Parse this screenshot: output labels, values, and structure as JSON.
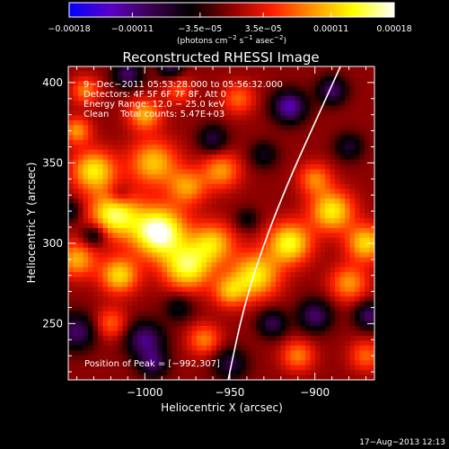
{
  "chart_data": {
    "type": "heatmap",
    "title": "Reconstructed RHESSI Image",
    "xlabel": "Heliocentric X (arcsec)",
    "ylabel": "Heliocentric Y (arcsec)",
    "xlim": [
      -1045,
      -865
    ],
    "ylim": [
      215,
      410
    ],
    "xticks": [
      -1000,
      -950,
      -900
    ],
    "xtick_labels": [
      "−1000",
      "−950",
      "−900"
    ],
    "yticks": [
      250,
      300,
      350,
      400
    ],
    "ytick_labels": [
      "250",
      "300",
      "350",
      "400"
    ],
    "colorbar": {
      "ticks": [
        -0.00018,
        -0.00011,
        -3.5e-05,
        3.5e-05,
        0.00011,
        0.00018
      ],
      "tick_labels": [
        "−0.00018",
        "−0.00011",
        "−3.5e−05",
        "3.5e−05",
        "0.00011",
        "0.00018"
      ],
      "unit_label": "(photons cm",
      "unit_label_sup1": "−2",
      "unit_label_mid": " s",
      "unit_label_sup2": "−1",
      "unit_label_mid2": " asec",
      "unit_label_sup3": "−2",
      "unit_label_end": ")",
      "colors": [
        "#0000ff",
        "#5a00c8",
        "#3c0050",
        "#000000",
        "#8c0000",
        "#ff1e00",
        "#ff9600",
        "#ffff00",
        "#ffffff"
      ]
    },
    "info_lines": [
      "9−Dec−2011 05:53:28.000 to 05:56:32.000",
      "Detectors: 4F 5F 6F 7F 8F, Att 0",
      "Energy Range: 12.0 − 25.0 keV",
      "Clean    Total counts: 5.47E+03"
    ],
    "peak_label": "Position of Peak = [−992,307]",
    "peak": [
      -992,
      307
    ],
    "limb_curve": [
      [
        -951,
        215
      ],
      [
        -942,
        260
      ],
      [
        -930,
        300
      ],
      [
        -915,
        340
      ],
      [
        -900,
        375
      ],
      [
        -885,
        410
      ]
    ],
    "image_min": -0.00018,
    "image_max": 0.00018,
    "features": [
      {
        "x": -992,
        "y": 307,
        "amp": 0.00019,
        "sigma": 11
      },
      {
        "x": -1018,
        "y": 318,
        "amp": 0.00015,
        "sigma": 10
      },
      {
        "x": -1030,
        "y": 345,
        "amp": 0.00013,
        "sigma": 9
      },
      {
        "x": -995,
        "y": 350,
        "amp": 0.00011,
        "sigma": 10
      },
      {
        "x": -1040,
        "y": 290,
        "amp": 0.0001,
        "sigma": 8
      },
      {
        "x": -1015,
        "y": 280,
        "amp": 0.00012,
        "sigma": 8
      },
      {
        "x": -975,
        "y": 285,
        "amp": 0.00014,
        "sigma": 10
      },
      {
        "x": -960,
        "y": 300,
        "amp": 0.00011,
        "sigma": 9
      },
      {
        "x": -975,
        "y": 335,
        "amp": 9e-05,
        "sigma": 8
      },
      {
        "x": -955,
        "y": 345,
        "amp": 9e-05,
        "sigma": 8
      },
      {
        "x": -935,
        "y": 280,
        "amp": 0.00013,
        "sigma": 10
      },
      {
        "x": -915,
        "y": 300,
        "amp": 0.00014,
        "sigma": 9
      },
      {
        "x": -890,
        "y": 320,
        "amp": 0.00013,
        "sigma": 9
      },
      {
        "x": -870,
        "y": 300,
        "amp": 0.00012,
        "sigma": 8
      },
      {
        "x": -880,
        "y": 275,
        "amp": 9e-05,
        "sigma": 8
      },
      {
        "x": -900,
        "y": 340,
        "amp": 8e-05,
        "sigma": 7
      },
      {
        "x": -1000,
        "y": 380,
        "amp": 0.0001,
        "sigma": 7
      },
      {
        "x": -1035,
        "y": 395,
        "amp": 8e-05,
        "sigma": 6
      },
      {
        "x": -1040,
        "y": 370,
        "amp": 9e-05,
        "sigma": 6
      },
      {
        "x": -950,
        "y": 270,
        "amp": 9e-05,
        "sigma": 7
      },
      {
        "x": -965,
        "y": 240,
        "amp": 8e-05,
        "sigma": 7
      },
      {
        "x": -1020,
        "y": 250,
        "amp": 7e-05,
        "sigma": 7
      },
      {
        "x": -910,
        "y": 230,
        "amp": 8e-05,
        "sigma": 7
      },
      {
        "x": -870,
        "y": 230,
        "amp": 7e-05,
        "sigma": 7
      },
      {
        "x": -980,
        "y": 395,
        "amp": 6e-05,
        "sigma": 6
      },
      {
        "x": -945,
        "y": 390,
        "amp": 7e-05,
        "sigma": 7
      },
      {
        "x": -915,
        "y": 385,
        "amp": -0.00013,
        "sigma": 7
      },
      {
        "x": -890,
        "y": 395,
        "amp": -0.0001,
        "sigma": 6
      },
      {
        "x": -1010,
        "y": 405,
        "amp": -0.0001,
        "sigma": 6
      },
      {
        "x": -985,
        "y": 410,
        "amp": -9e-05,
        "sigma": 5
      },
      {
        "x": -1045,
        "y": 320,
        "amp": -7e-05,
        "sigma": 5
      },
      {
        "x": -1030,
        "y": 305,
        "amp": -8e-05,
        "sigma": 5
      },
      {
        "x": -1040,
        "y": 245,
        "amp": -0.0001,
        "sigma": 8
      },
      {
        "x": -1000,
        "y": 240,
        "amp": -0.00011,
        "sigma": 8
      },
      {
        "x": -995,
        "y": 225,
        "amp": -9e-05,
        "sigma": 6
      },
      {
        "x": -950,
        "y": 225,
        "amp": -8e-05,
        "sigma": 7
      },
      {
        "x": -925,
        "y": 250,
        "amp": -9e-05,
        "sigma": 6
      },
      {
        "x": -900,
        "y": 255,
        "amp": -0.0001,
        "sigma": 7
      },
      {
        "x": -868,
        "y": 255,
        "amp": -0.0001,
        "sigma": 6
      },
      {
        "x": -880,
        "y": 360,
        "amp": -7e-05,
        "sigma": 6
      },
      {
        "x": -930,
        "y": 355,
        "amp": -6e-05,
        "sigma": 6
      },
      {
        "x": -960,
        "y": 365,
        "amp": -8e-05,
        "sigma": 6
      },
      {
        "x": -1015,
        "y": 330,
        "amp": -5e-05,
        "sigma": 5
      },
      {
        "x": -940,
        "y": 315,
        "amp": -5e-05,
        "sigma": 5
      },
      {
        "x": -980,
        "y": 260,
        "amp": -6e-05,
        "sigma": 6
      }
    ]
  },
  "footer": {
    "timestamp": "17−Aug−2013 12:13"
  }
}
